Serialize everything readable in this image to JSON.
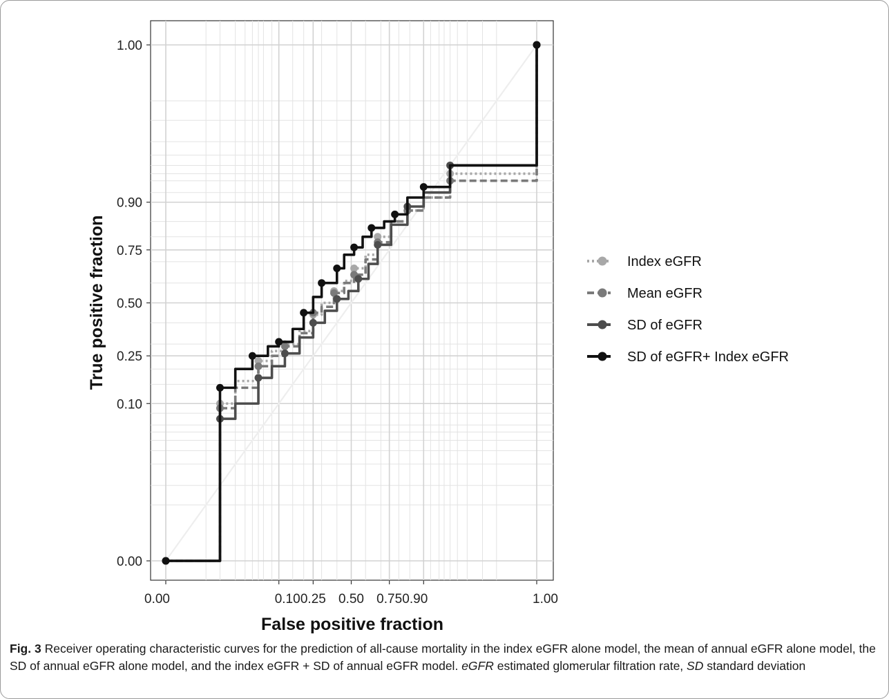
{
  "chart_data": {
    "type": "line",
    "title": "",
    "xlabel": "False positive fraction",
    "ylabel": "True positive fraction",
    "xlim": [
      0,
      1
    ],
    "ylim": [
      0,
      1
    ],
    "x_scale": "probit",
    "y_scale": "probit",
    "x_ticks": [
      "0.00",
      "0.10",
      "0.25",
      "0.50",
      "0.75",
      "0.90",
      "1.00"
    ],
    "y_ticks": [
      "0.00",
      "0.10",
      "0.25",
      "0.50",
      "0.75",
      "0.90",
      "1.00"
    ],
    "grid": true,
    "legend_position": "right",
    "series": [
      {
        "name": "Index eGFR",
        "style": "dotted",
        "color": "#a8a8a8",
        "points": [
          [
            0,
            0
          ],
          [
            0.01,
            0.1
          ],
          [
            0.02,
            0.16
          ],
          [
            0.05,
            0.23
          ],
          [
            0.08,
            0.27
          ],
          [
            0.12,
            0.3
          ],
          [
            0.18,
            0.36
          ],
          [
            0.25,
            0.44
          ],
          [
            0.3,
            0.5
          ],
          [
            0.38,
            0.56
          ],
          [
            0.45,
            0.61
          ],
          [
            0.52,
            0.67
          ],
          [
            0.6,
            0.73
          ],
          [
            0.68,
            0.8
          ],
          [
            0.76,
            0.85
          ],
          [
            0.84,
            0.88
          ],
          [
            0.9,
            0.91
          ],
          [
            0.96,
            0.95
          ],
          [
            1,
            1
          ]
        ]
      },
      {
        "name": "Mean eGFR",
        "style": "dashed",
        "color": "#7a7a7a",
        "points": [
          [
            0,
            0
          ],
          [
            0.01,
            0.09
          ],
          [
            0.02,
            0.14
          ],
          [
            0.05,
            0.21
          ],
          [
            0.08,
            0.25
          ],
          [
            0.12,
            0.29
          ],
          [
            0.18,
            0.35
          ],
          [
            0.25,
            0.45
          ],
          [
            0.3,
            0.48
          ],
          [
            0.38,
            0.55
          ],
          [
            0.45,
            0.6
          ],
          [
            0.52,
            0.64
          ],
          [
            0.6,
            0.71
          ],
          [
            0.68,
            0.78
          ],
          [
            0.76,
            0.85
          ],
          [
            0.84,
            0.88
          ],
          [
            0.9,
            0.91
          ],
          [
            0.96,
            0.94
          ],
          [
            1,
            1
          ]
        ]
      },
      {
        "name": "SD of eGFR",
        "style": "solid",
        "color": "#4d4d4d",
        "points": [
          [
            0,
            0
          ],
          [
            0.01,
            0.07
          ],
          [
            0.02,
            0.1
          ],
          [
            0.05,
            0.17
          ],
          [
            0.08,
            0.21
          ],
          [
            0.12,
            0.26
          ],
          [
            0.18,
            0.33
          ],
          [
            0.25,
            0.4
          ],
          [
            0.32,
            0.46
          ],
          [
            0.4,
            0.52
          ],
          [
            0.48,
            0.56
          ],
          [
            0.55,
            0.62
          ],
          [
            0.62,
            0.69
          ],
          [
            0.68,
            0.77
          ],
          [
            0.76,
            0.84
          ],
          [
            0.84,
            0.89
          ],
          [
            0.9,
            0.92
          ],
          [
            0.96,
            0.96
          ],
          [
            1,
            1
          ]
        ]
      },
      {
        "name": "SD of eGFR+ Index eGFR",
        "style": "solid",
        "color": "#111111",
        "points": [
          [
            0,
            0
          ],
          [
            0.01,
            0.14
          ],
          [
            0.02,
            0.2
          ],
          [
            0.04,
            0.25
          ],
          [
            0.07,
            0.29
          ],
          [
            0.1,
            0.31
          ],
          [
            0.15,
            0.37
          ],
          [
            0.2,
            0.45
          ],
          [
            0.25,
            0.53
          ],
          [
            0.3,
            0.6
          ],
          [
            0.35,
            0.6
          ],
          [
            0.4,
            0.67
          ],
          [
            0.45,
            0.73
          ],
          [
            0.52,
            0.76
          ],
          [
            0.58,
            0.8
          ],
          [
            0.64,
            0.83
          ],
          [
            0.72,
            0.85
          ],
          [
            0.78,
            0.87
          ],
          [
            0.84,
            0.91
          ],
          [
            0.9,
            0.93
          ],
          [
            0.96,
            0.96
          ],
          [
            1,
            1
          ]
        ]
      }
    ]
  },
  "caption": {
    "fig_label": "Fig. 3",
    "text_part1": "Receiver operating characteristic curves for the prediction of all-cause mortality in the index eGFR alone model, the mean of annual eGFR alone model, the SD of annual eGFR alone model, and the index eGFR + SD of annual eGFR model. ",
    "abbr1": "eGFR",
    "text_part2": " estimated glomerular filtration rate, ",
    "abbr2": "SD",
    "text_part3": " standard deviation"
  }
}
